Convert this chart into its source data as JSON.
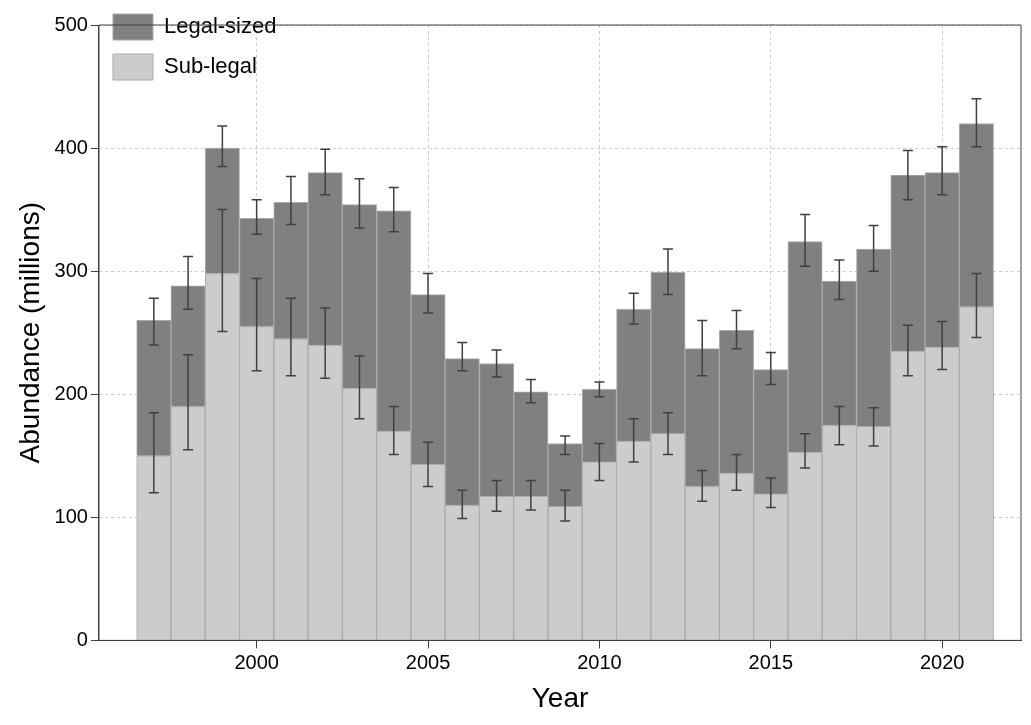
{
  "chart_data": {
    "type": "bar",
    "stacked": true,
    "xlabel": "Year",
    "ylabel": "Abundance (millions)",
    "x": [
      1997,
      1998,
      1999,
      2000,
      2001,
      2002,
      2003,
      2004,
      2005,
      2006,
      2007,
      2008,
      2009,
      2010,
      2011,
      2012,
      2013,
      2014,
      2015,
      2016,
      2017,
      2018,
      2019,
      2020,
      2021
    ],
    "series": [
      {
        "name": "Sub-legal",
        "color": "#cccccc",
        "values": [
          150,
          190,
          298,
          255,
          245,
          240,
          205,
          170,
          143,
          110,
          117,
          117,
          109,
          145,
          162,
          168,
          125,
          136,
          119,
          153,
          175,
          174,
          235,
          238,
          271
        ],
        "errors": [
          [
            120,
            185
          ],
          [
            155,
            232
          ],
          [
            251,
            350
          ],
          [
            219,
            294
          ],
          [
            215,
            278
          ],
          [
            213,
            270
          ],
          [
            180,
            231
          ],
          [
            151,
            190
          ],
          [
            125,
            161
          ],
          [
            99,
            122
          ],
          [
            105,
            130
          ],
          [
            106,
            130
          ],
          [
            97,
            122
          ],
          [
            130,
            160
          ],
          [
            145,
            180
          ],
          [
            151,
            185
          ],
          [
            113,
            138
          ],
          [
            122,
            151
          ],
          [
            108,
            132
          ],
          [
            140,
            168
          ],
          [
            159,
            190
          ],
          [
            158,
            189
          ],
          [
            215,
            256
          ],
          [
            220,
            259
          ],
          [
            246,
            298
          ]
        ]
      },
      {
        "name": "Legal-sized",
        "color": "#808080",
        "values": [
          110,
          98,
          102,
          88,
          111,
          140,
          149,
          179,
          138,
          119,
          108,
          85,
          51,
          59,
          107,
          131,
          112,
          116,
          101,
          171,
          117,
          144,
          143,
          142,
          149
        ],
        "errors": [
          [
            240,
            278
          ],
          [
            269,
            312
          ],
          [
            385,
            418
          ],
          [
            330,
            358
          ],
          [
            338,
            377
          ],
          [
            362,
            399
          ],
          [
            335,
            375
          ],
          [
            332,
            368
          ],
          [
            266,
            298
          ],
          [
            219,
            242
          ],
          [
            214,
            236
          ],
          [
            193,
            212
          ],
          [
            151,
            166
          ],
          [
            198,
            210
          ],
          [
            257,
            282
          ],
          [
            281,
            318
          ],
          [
            215,
            260
          ],
          [
            237,
            268
          ],
          [
            208,
            234
          ],
          [
            304,
            346
          ],
          [
            277,
            309
          ],
          [
            300,
            337
          ],
          [
            358,
            398
          ],
          [
            362,
            401
          ],
          [
            401,
            440
          ]
        ]
      }
    ],
    "xlim": [
      1995.4,
      2022.3
    ],
    "xticks": [
      2000,
      2005,
      2010,
      2015,
      2020
    ],
    "ylim": [
      0,
      500
    ],
    "yticks": [
      0,
      100,
      200,
      300,
      400,
      500
    ],
    "grid": true,
    "legend": "top left"
  }
}
